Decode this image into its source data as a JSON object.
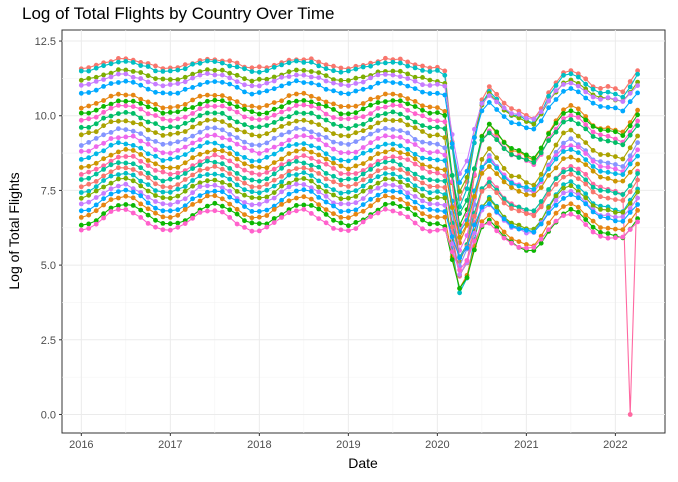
{
  "chart_data": {
    "type": "line",
    "title": "Log of Total Flights by Country Over Time",
    "xlabel": "Date",
    "ylabel": "Log of Total Flights",
    "xlim": [
      "2015-10-13",
      "2022-07-22"
    ],
    "ylim": [
      -0.62,
      12.87
    ],
    "x_ticks": [
      "2016",
      "2017",
      "2018",
      "2019",
      "2020",
      "2021",
      "2022"
    ],
    "y_ticks": [
      "0.0",
      "2.5",
      "5.0",
      "7.5",
      "10.0",
      "12.5"
    ],
    "grid": true,
    "legend": "none",
    "x_start": "2016-01",
    "x_end": "2022-04",
    "series_colors": [
      "#F8766D",
      "#00BFC4",
      "#7CAE00",
      "#C77CFF",
      "#00A9FF",
      "#E68613",
      "#0CB702",
      "#FF61CC",
      "#00BE67",
      "#ABA300",
      "#8494FF",
      "#ED68ED",
      "#00B8E7",
      "#CD9600",
      "#FF68A1",
      "#00C19A"
    ],
    "series": [
      {
        "base": 11.75,
        "amp": 0.15
      },
      {
        "base": 11.65,
        "amp": 0.16
      },
      {
        "base": 11.35,
        "amp": 0.17
      },
      {
        "base": 11.2,
        "amp": 0.18
      },
      {
        "base": 10.95,
        "amp": 0.2
      },
      {
        "base": 10.5,
        "amp": 0.22
      },
      {
        "base": 10.3,
        "amp": 0.22
      },
      {
        "base": 10.1,
        "amp": 0.24
      },
      {
        "base": 9.85,
        "amp": 0.25
      },
      {
        "base": 9.6,
        "amp": 0.26
      },
      {
        "base": 9.3,
        "amp": 0.27
      },
      {
        "base": 9.05,
        "amp": 0.28
      },
      {
        "base": 8.8,
        "amp": 0.29
      },
      {
        "base": 8.55,
        "amp": 0.3
      },
      {
        "base": 8.35,
        "amp": 0.3
      },
      {
        "base": 8.15,
        "amp": 0.31
      },
      {
        "base": 7.95,
        "amp": 0.32
      },
      {
        "base": 7.75,
        "amp": 0.33
      },
      {
        "base": 7.55,
        "amp": 0.33
      },
      {
        "base": 7.35,
        "amp": 0.34
      },
      {
        "base": 7.15,
        "amp": 0.35
      },
      {
        "base": 6.95,
        "amp": 0.35
      },
      {
        "base": 6.7,
        "amp": 0.35
      },
      {
        "base": 6.5,
        "amp": 0.36
      }
    ]
  }
}
